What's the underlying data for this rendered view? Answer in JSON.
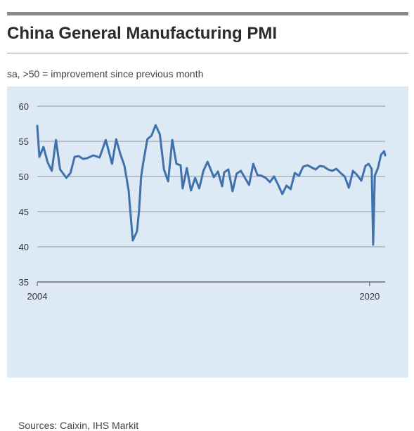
{
  "title": "China General Manufacturing PMI",
  "subtitle": "sa, >50 = improvement since previous month",
  "source": "Sources: Caixin, IHS Markit",
  "colors": {
    "line": "#3f72ad",
    "grid": "#a9b3bd",
    "panel": "#dde9f4"
  },
  "chart_data": {
    "type": "line",
    "title": "China General Manufacturing PMI",
    "subtitle": "sa, >50 = improvement since previous month",
    "xlabel": "",
    "ylabel": "",
    "ylim": [
      35,
      60
    ],
    "xlim": [
      2004.0,
      2020.75
    ],
    "yticks": [
      35,
      40,
      45,
      50,
      55,
      60
    ],
    "xtick_labels": [
      "2004",
      "2020"
    ],
    "grid": "horizontal",
    "series": [
      {
        "x": [
          2004.0,
          2004.1,
          2004.3,
          2004.5,
          2004.7,
          2004.9,
          2005.1,
          2005.4,
          2005.6,
          2005.8,
          2006.0,
          2006.2,
          2006.4,
          2006.7,
          2007.0,
          2007.3,
          2007.6,
          2007.8,
          2008.0,
          2008.2,
          2008.4,
          2008.6,
          2008.8,
          2008.9,
          2009.0,
          2009.1,
          2009.3,
          2009.5,
          2009.7,
          2009.9,
          2010.1,
          2010.3,
          2010.5,
          2010.7,
          2010.9,
          2011.0,
          2011.2,
          2011.4,
          2011.6,
          2011.8,
          2012.0,
          2012.2,
          2012.5,
          2012.7,
          2012.9,
          2013.0,
          2013.2,
          2013.4,
          2013.6,
          2013.8,
          2014.0,
          2014.2,
          2014.4,
          2014.6,
          2014.8,
          2015.0,
          2015.2,
          2015.4,
          2015.6,
          2015.8,
          2016.0,
          2016.2,
          2016.4,
          2016.6,
          2016.8,
          2017.0,
          2017.2,
          2017.4,
          2017.6,
          2017.8,
          2018.0,
          2018.2,
          2018.4,
          2018.6,
          2018.8,
          2019.0,
          2019.2,
          2019.4,
          2019.6,
          2019.8,
          2019.95,
          2020.1,
          2020.17,
          2020.25,
          2020.4,
          2020.55,
          2020.7,
          2020.75
        ],
        "values": [
          57.2,
          52.8,
          54.2,
          52.0,
          50.8,
          55.2,
          51.0,
          49.8,
          50.5,
          52.8,
          52.9,
          52.5,
          52.6,
          53.0,
          52.7,
          55.2,
          51.8,
          55.3,
          53.2,
          51.5,
          48.0,
          40.9,
          42.2,
          45.1,
          50.0,
          51.9,
          55.3,
          55.8,
          57.3,
          56.0,
          51.0,
          49.3,
          55.2,
          51.8,
          51.6,
          48.3,
          51.2,
          48.0,
          49.8,
          48.3,
          50.8,
          52.1,
          49.9,
          50.7,
          48.6,
          50.6,
          51.0,
          47.9,
          50.4,
          50.8,
          49.8,
          48.8,
          51.8,
          50.2,
          50.1,
          49.8,
          49.2,
          50.0,
          48.8,
          47.5,
          48.7,
          48.2,
          50.5,
          50.1,
          51.4,
          51.6,
          51.3,
          51.0,
          51.5,
          51.4,
          51.0,
          50.8,
          51.1,
          50.5,
          50.0,
          48.4,
          50.8,
          50.2,
          49.4,
          51.5,
          51.8,
          51.1,
          40.3,
          50.1,
          51.2,
          53.1,
          53.6,
          53.0
        ]
      }
    ]
  }
}
